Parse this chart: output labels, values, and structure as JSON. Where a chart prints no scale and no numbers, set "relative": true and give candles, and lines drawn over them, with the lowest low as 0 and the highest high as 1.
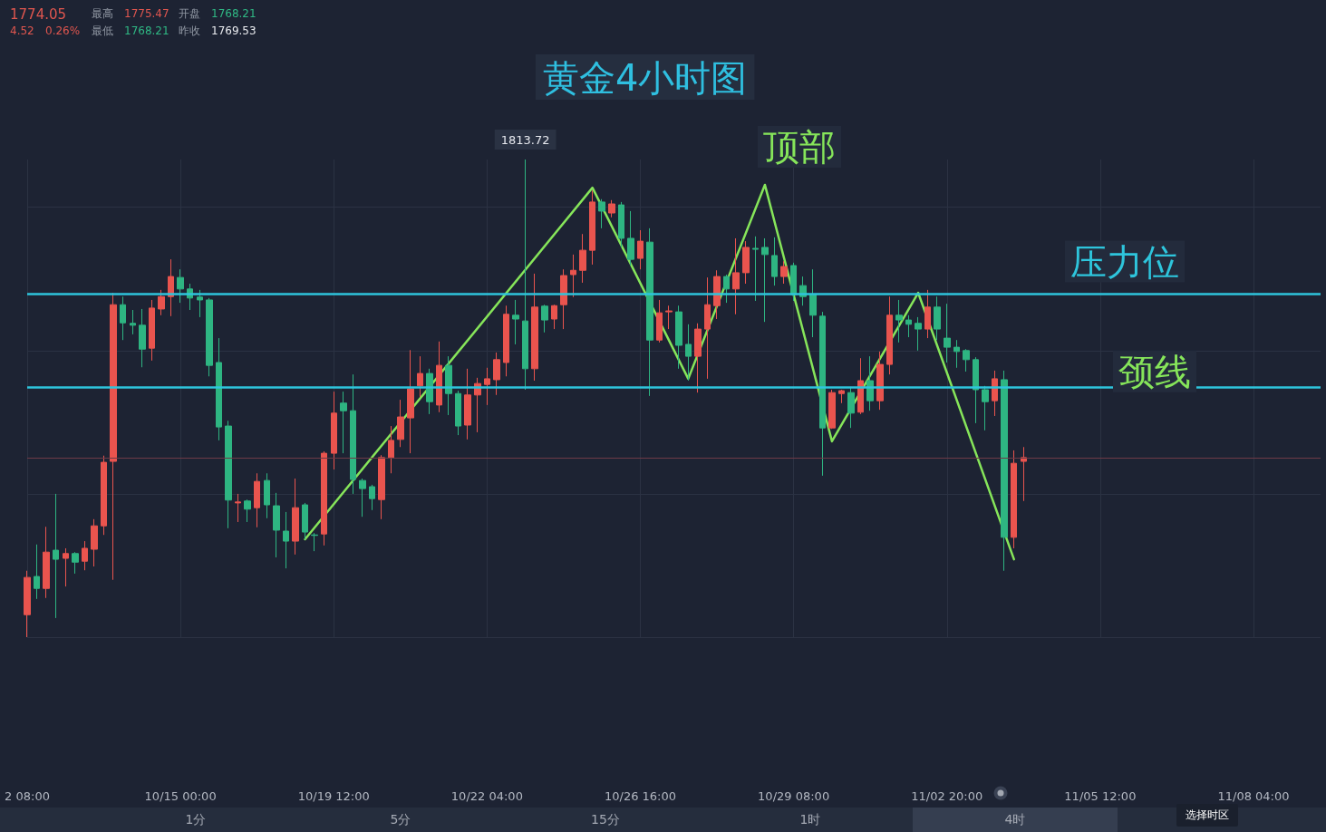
{
  "chart_data": {
    "type": "candlestick",
    "title": "黄金4小时图",
    "relative": true,
    "grid": true,
    "tick_labels": "x",
    "marker": "none",
    "categories": [
      "2 08:00",
      null,
      null,
      null,
      null,
      null,
      null,
      null,
      null,
      null,
      null,
      null,
      null,
      null,
      null,
      null,
      "10/15 00:00",
      null,
      null,
      null,
      null,
      null,
      null,
      null,
      null,
      null,
      null,
      null,
      null,
      null,
      null,
      null,
      "10/19 12:00",
      null,
      null,
      null,
      null,
      null,
      null,
      null,
      null,
      null,
      null,
      null,
      null,
      null,
      null,
      null,
      "10/22 04:00",
      null,
      null,
      null,
      null,
      null,
      null,
      null,
      null,
      null,
      null,
      null,
      null,
      null,
      null,
      null,
      "10/26 16:00",
      null,
      null,
      null,
      null,
      null,
      null,
      null,
      null,
      null,
      null,
      null,
      null,
      null,
      null,
      null,
      "10/29 08:00",
      null,
      null,
      null,
      null,
      null,
      null,
      null,
      null,
      null,
      null,
      null,
      null,
      null,
      null,
      null,
      "11/02 20:00",
      null,
      null,
      null,
      null,
      null,
      null,
      null,
      null,
      null,
      null,
      null,
      null,
      null,
      null,
      null,
      "11/05 12:00",
      null,
      null,
      null,
      null,
      null,
      null,
      null,
      null,
      null,
      null,
      null,
      null,
      null,
      null,
      null,
      "11/08 04:00",
      null,
      null,
      null,
      null,
      null,
      null,
      null
    ],
    "ohlc": [
      [
        0.047,
        0.139,
        0,
        0.125
      ],
      [
        0.127,
        0.194,
        0.08,
        0.102
      ],
      [
        0.102,
        0.231,
        0.082,
        0.178
      ],
      [
        0.182,
        0.3,
        0.04,
        0.163
      ],
      [
        0.165,
        0.186,
        0.106,
        0.175
      ],
      [
        0.175,
        0.178,
        0.133,
        0.157
      ],
      [
        0.159,
        0.201,
        0.14,
        0.186
      ],
      [
        0.184,
        0.247,
        0.148,
        0.233
      ],
      [
        0.233,
        0.38,
        0.214,
        0.366
      ],
      [
        0.368,
        0.721,
        0.12,
        0.696
      ],
      [
        0.696,
        0.713,
        0.622,
        0.658
      ],
      [
        0.657,
        0.685,
        0.634,
        0.653
      ],
      [
        0.653,
        0.687,
        0.565,
        0.603
      ],
      [
        0.605,
        0.706,
        0.579,
        0.689
      ],
      [
        0.687,
        0.727,
        0.674,
        0.713
      ],
      [
        0.713,
        0.791,
        0.672,
        0.755
      ],
      [
        0.753,
        0.77,
        0.7,
        0.729
      ],
      [
        0.729,
        0.74,
        0.685,
        0.71
      ],
      [
        0.712,
        0.727,
        0.67,
        0.706
      ],
      [
        0.706,
        0.71,
        0.546,
        0.569
      ],
      [
        0.575,
        0.626,
        0.412,
        0.44
      ],
      [
        0.442,
        0.453,
        0.228,
        0.287
      ],
      [
        0.281,
        0.3,
        0.241,
        0.283
      ],
      [
        0.285,
        0.288,
        0.241,
        0.268
      ],
      [
        0.271,
        0.343,
        0.23,
        0.326
      ],
      [
        0.328,
        0.343,
        0.249,
        0.277
      ],
      [
        0.275,
        0.302,
        0.167,
        0.224
      ],
      [
        0.222,
        0.262,
        0.144,
        0.201
      ],
      [
        0.201,
        0.332,
        0.173,
        0.271
      ],
      [
        0.277,
        0.281,
        0.205,
        0.22
      ],
      [
        0.214,
        0.218,
        0.18,
        0.213
      ],
      [
        0.216,
        0.389,
        0.192,
        0.385
      ],
      [
        0.385,
        0.514,
        0.351,
        0.469
      ],
      [
        0.49,
        0.514,
        0.385,
        0.474
      ],
      [
        0.474,
        0.55,
        0.3,
        0.33
      ],
      [
        0.328,
        0.332,
        0.252,
        0.311
      ],
      [
        0.315,
        0.319,
        0.266,
        0.29
      ],
      [
        0.288,
        0.381,
        0.247,
        0.376
      ],
      [
        0.376,
        0.442,
        0.343,
        0.412
      ],
      [
        0.414,
        0.497,
        0.398,
        0.461
      ],
      [
        0.459,
        0.601,
        0.385,
        0.52
      ],
      [
        0.526,
        0.588,
        0.503,
        0.552
      ],
      [
        0.552,
        0.562,
        0.467,
        0.493
      ],
      [
        0.486,
        0.619,
        0.471,
        0.569
      ],
      [
        0.569,
        0.588,
        0.465,
        0.51
      ],
      [
        0.51,
        0.516,
        0.423,
        0.442
      ],
      [
        0.444,
        0.562,
        0.414,
        0.507
      ],
      [
        0.507,
        0.543,
        0.429,
        0.531
      ],
      [
        0.529,
        0.564,
        0.486,
        0.541
      ],
      [
        0.539,
        0.596,
        0.507,
        0.581
      ],
      [
        0.575,
        0.694,
        0.546,
        0.676
      ],
      [
        0.674,
        0.706,
        0.613,
        0.666
      ],
      [
        0.662,
        1,
        0.518,
        0.562
      ],
      [
        0.562,
        0.761,
        0.537,
        0.691
      ],
      [
        0.693,
        0.696,
        0.638,
        0.664
      ],
      [
        0.666,
        0.696,
        0.645,
        0.694
      ],
      [
        0.696,
        0.77,
        0.645,
        0.757
      ],
      [
        0.759,
        0.801,
        0.712,
        0.768
      ],
      [
        0.768,
        0.844,
        0.742,
        0.81
      ],
      [
        0.81,
        0.935,
        0.78,
        0.911
      ],
      [
        0.911,
        0.917,
        0.856,
        0.892
      ],
      [
        0.888,
        0.915,
        0.879,
        0.907
      ],
      [
        0.905,
        0.911,
        0.816,
        0.835
      ],
      [
        0.835,
        0.892,
        0.778,
        0.791
      ],
      [
        0.793,
        0.852,
        0.77,
        0.829
      ],
      [
        0.827,
        0.856,
        0.505,
        0.622
      ],
      [
        0.622,
        0.706,
        0.617,
        0.679
      ],
      [
        0.681,
        0.694,
        0.645,
        0.683
      ],
      [
        0.681,
        0.694,
        0.562,
        0.611
      ],
      [
        0.613,
        0.655,
        0.537,
        0.588
      ],
      [
        0.588,
        0.657,
        0.512,
        0.645
      ],
      [
        0.645,
        0.753,
        0.541,
        0.696
      ],
      [
        0.694,
        0.768,
        0.666,
        0.755
      ],
      [
        0.755,
        0.759,
        0.7,
        0.729
      ],
      [
        0.729,
        0.835,
        0.676,
        0.763
      ],
      [
        0.763,
        0.829,
        0.74,
        0.816
      ],
      [
        0.814,
        0.839,
        0.704,
        0.812
      ],
      [
        0.816,
        0.835,
        0.66,
        0.801
      ],
      [
        0.799,
        0.837,
        0.736,
        0.755
      ],
      [
        0.755,
        0.787,
        0.74,
        0.776
      ],
      [
        0.778,
        0.784,
        0.704,
        0.717
      ],
      [
        0.736,
        0.755,
        0.694,
        0.713
      ],
      [
        0.717,
        0.77,
        0.628,
        0.674
      ],
      [
        0.672,
        0.681,
        0.338,
        0.438
      ],
      [
        0.438,
        0.518,
        0.436,
        0.512
      ],
      [
        0.51,
        0.518,
        0.49,
        0.516
      ],
      [
        0.512,
        0.524,
        0.438,
        0.469
      ],
      [
        0.471,
        0.584,
        0.467,
        0.537
      ],
      [
        0.537,
        0.588,
        0.474,
        0.495
      ],
      [
        0.495,
        0.598,
        0.476,
        0.571
      ],
      [
        0.571,
        0.713,
        0.55,
        0.674
      ],
      [
        0.674,
        0.706,
        0.617,
        0.664
      ],
      [
        0.664,
        0.674,
        0.628,
        0.655
      ],
      [
        0.657,
        0.67,
        0.6,
        0.645
      ],
      [
        0.645,
        0.727,
        0.626,
        0.691
      ],
      [
        0.691,
        0.713,
        0.622,
        0.645
      ],
      [
        0.626,
        0.698,
        0.575,
        0.607
      ],
      [
        0.607,
        0.622,
        0.564,
        0.598
      ],
      [
        0.6,
        0.603,
        0.556,
        0.581
      ],
      [
        0.581,
        0.586,
        0.448,
        0.518
      ],
      [
        0.518,
        0.526,
        0.433,
        0.493
      ],
      [
        0.495,
        0.558,
        0.463,
        0.541
      ],
      [
        0.539,
        0.558,
        0.139,
        0.209
      ],
      [
        0.209,
        0.391,
        0.186,
        0.364
      ],
      [
        0.368,
        0.398,
        0.285,
        0.376
      ],
      null,
      null,
      null,
      null,
      null,
      null,
      null,
      null,
      null,
      null,
      null,
      null,
      null,
      null,
      null,
      null,
      null,
      null,
      null,
      null,
      null,
      null,
      null,
      null,
      null,
      null,
      null,
      null,
      null,
      null,
      null
    ],
    "colors": [
      "#e9544e",
      "#2eb582",
      "#e9544e",
      "#2eb582",
      "#e9544e",
      "#2eb582",
      "#e9544e",
      "#e9544e",
      "#e9544e",
      "#e9544e",
      "#2eb582",
      "#2eb582",
      "#2eb582",
      "#e9544e",
      "#e9544e",
      "#e9544e",
      "#2eb582",
      "#2eb582",
      "#2eb582",
      "#2eb582",
      "#2eb582",
      "#2eb582",
      "#e9544e",
      "#2eb582",
      "#e9544e",
      "#2eb582",
      "#2eb582",
      "#2eb582",
      "#e9544e",
      "#2eb582",
      "#2eb582",
      "#e9544e",
      "#e9544e",
      "#2eb582",
      "#2eb582",
      "#2eb582",
      "#2eb582",
      "#e9544e",
      "#e9544e",
      "#e9544e",
      "#e9544e",
      "#e9544e",
      "#2eb582",
      "#e9544e",
      "#2eb582",
      "#2eb582",
      "#e9544e",
      "#e9544e",
      "#e9544e",
      "#e9544e",
      "#e9544e",
      "#2eb582",
      "#2eb582",
      "#e9544e",
      "#2eb582",
      "#e9544e",
      "#e9544e",
      "#e9544e",
      "#e9544e",
      "#e9544e",
      "#2eb582",
      "#e9544e",
      "#2eb582",
      "#2eb582",
      "#e9544e",
      "#2eb582",
      "#e9544e",
      "#e9544e",
      "#2eb582",
      "#2eb582",
      "#e9544e",
      "#e9544e",
      "#e9544e",
      "#2eb582",
      "#e9544e",
      "#e9544e",
      "#2eb582",
      "#2eb582",
      "#2eb582",
      "#e9544e",
      "#2eb582",
      "#2eb582",
      "#2eb582",
      "#2eb582",
      "#e9544e",
      "#e9544e",
      "#2eb582",
      "#e9544e",
      "#2eb582",
      "#e9544e",
      "#e9544e",
      "#2eb582",
      "#2eb582",
      "#2eb582",
      "#e9544e",
      "#2eb582",
      "#2eb582",
      "#2eb582",
      "#2eb582",
      "#2eb582",
      "#2eb582",
      "#e9544e",
      "#2eb582",
      "#e9544e",
      "#e9544e",
      null,
      null,
      null,
      null,
      null,
      null,
      null,
      null,
      null,
      null,
      null,
      null,
      null,
      null,
      null,
      null,
      null,
      null,
      null,
      null,
      null,
      null,
      null,
      null,
      null,
      null,
      null,
      null,
      null,
      null,
      null
    ],
    "value_labels": [
      null,
      null,
      null,
      null,
      null,
      null,
      null,
      null,
      null,
      null,
      null,
      null,
      null,
      null,
      null,
      null,
      null,
      null,
      null,
      null,
      null,
      null,
      null,
      null,
      null,
      null,
      null,
      null,
      null,
      null,
      null,
      null,
      null,
      null,
      null,
      null,
      null,
      null,
      null,
      null,
      null,
      null,
      null,
      null,
      null,
      null,
      null,
      null,
      null,
      null,
      null,
      null,
      "1813.72",
      null,
      null,
      null,
      null,
      null,
      null,
      null,
      null,
      null,
      null,
      null,
      null,
      null,
      null,
      null,
      null,
      null,
      null,
      null,
      null,
      null,
      null,
      null,
      null,
      null,
      null,
      null,
      null,
      null,
      null,
      null,
      null,
      null,
      null,
      null,
      null,
      null,
      null,
      null,
      null,
      null,
      null,
      null,
      null,
      null,
      null,
      null,
      null,
      null,
      null,
      null,
      null,
      null,
      null,
      null,
      null,
      null,
      null,
      null,
      null,
      null,
      null,
      null,
      null,
      null,
      null,
      null,
      null,
      null,
      null,
      null,
      null,
      null,
      null,
      null,
      null,
      null,
      null,
      null,
      null,
      null,
      null,
      null
    ],
    "series": [
      {
        "type": "line",
        "color": "#86e55a",
        "values": [
          null,
          null,
          null,
          null,
          null,
          null,
          null,
          null,
          null,
          null,
          null,
          null,
          null,
          null,
          null,
          null,
          null,
          null,
          null,
          null,
          null,
          null,
          null,
          null,
          null,
          null,
          null,
          null,
          null,
          0.205,
          null,
          null,
          null,
          null,
          null,
          null,
          null,
          null,
          null,
          null,
          null,
          null,
          null,
          null,
          null,
          null,
          null,
          null,
          null,
          null,
          null,
          null,
          null,
          null,
          null,
          null,
          null,
          null,
          null,
          0.941,
          null,
          null,
          null,
          null,
          null,
          null,
          null,
          null,
          null,
          0.541,
          null,
          null,
          null,
          null,
          null,
          null,
          null,
          0.947,
          null,
          null,
          null,
          null,
          null,
          null,
          0.41,
          null,
          null,
          null,
          null,
          null,
          null,
          null,
          null,
          0.721,
          null,
          null,
          null,
          null,
          null,
          null,
          null,
          null,
          null,
          0.163,
          null,
          null,
          null,
          null,
          null,
          null,
          null,
          null,
          null,
          null,
          null,
          null,
          null,
          null,
          null,
          null,
          null,
          null,
          null,
          null,
          null,
          null,
          null,
          null,
          null,
          null,
          null,
          null,
          null,
          null,
          null,
          null
        ]
      }
    ],
    "ref_lines": [
      {
        "axis": "y",
        "value": 0.718,
        "label": "压力位",
        "color": "#2ec5dc"
      },
      {
        "axis": "y",
        "value": 0.524,
        "color": "#2ec5dc"
      },
      {
        "axis": "y",
        "value": 0.376,
        "color": "#6e3a47"
      }
    ],
    "annotations": [
      "顶部",
      "1774.05",
      "4.52",
      "0.26%",
      "最高",
      "1775.47",
      "开盘",
      "1768.21",
      "最低",
      "1768.21",
      "昨收",
      "1769.53",
      "1分",
      "5分",
      "15分",
      "1时",
      "4时",
      "选择时区",
      {
        "text": "颈线",
        "y": 0.524
      }
    ]
  }
}
